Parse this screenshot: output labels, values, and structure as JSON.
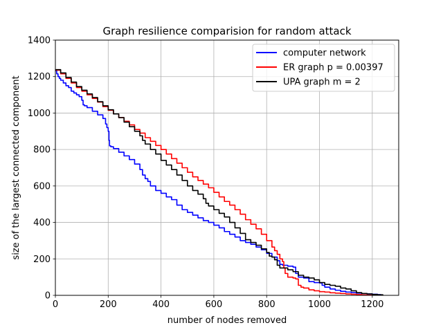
{
  "chart_data": {
    "type": "line",
    "title": "Graph resilience comparision for random attack",
    "xlabel": "number of nodes removed",
    "ylabel": "size of the largest connected component",
    "xlim": [
      0,
      1300
    ],
    "ylim": [
      0,
      1400
    ],
    "xticks": [
      0,
      200,
      400,
      600,
      800,
      1000,
      1200
    ],
    "yticks": [
      0,
      200,
      400,
      600,
      800,
      1000,
      1200,
      1400
    ],
    "grid": true,
    "legend_position": "top-right",
    "series": [
      {
        "name": "computer network",
        "color": "#0000ff",
        "x": [
          0,
          5,
          10,
          15,
          20,
          30,
          40,
          50,
          60,
          70,
          80,
          90,
          100,
          105,
          110,
          120,
          140,
          160,
          180,
          190,
          195,
          200,
          203,
          205,
          210,
          220,
          240,
          260,
          280,
          300,
          320,
          330,
          340,
          350,
          360,
          380,
          400,
          420,
          440,
          460,
          480,
          500,
          520,
          540,
          560,
          580,
          600,
          620,
          640,
          660,
          680,
          700,
          720,
          740,
          760,
          780,
          800,
          820,
          840,
          850,
          860,
          880,
          900,
          910,
          920,
          940,
          960,
          980,
          1000,
          1010,
          1020,
          1040,
          1060,
          1080,
          1100,
          1120,
          1140,
          1160,
          1180,
          1200,
          1220,
          1232
        ],
        "y": [
          1232,
          1215,
          1200,
          1190,
          1180,
          1165,
          1150,
          1140,
          1120,
          1110,
          1100,
          1090,
          1070,
          1045,
          1040,
          1030,
          1010,
          990,
          970,
          940,
          920,
          900,
          850,
          820,
          815,
          805,
          785,
          765,
          745,
          720,
          690,
          660,
          640,
          625,
          600,
          575,
          560,
          540,
          525,
          495,
          470,
          455,
          440,
          425,
          410,
          400,
          385,
          370,
          350,
          335,
          320,
          300,
          290,
          280,
          265,
          250,
          230,
          210,
          190,
          170,
          165,
          160,
          155,
          120,
          100,
          95,
          75,
          70,
          68,
          55,
          45,
          35,
          28,
          22,
          18,
          15,
          12,
          10,
          8,
          6,
          4,
          2
        ]
      },
      {
        "name": "ER graph p = 0.00397",
        "color": "#ff0000",
        "x": [
          0,
          20,
          40,
          60,
          80,
          100,
          120,
          140,
          160,
          180,
          200,
          220,
          240,
          260,
          280,
          300,
          320,
          340,
          360,
          380,
          400,
          420,
          440,
          460,
          480,
          500,
          520,
          540,
          560,
          580,
          600,
          620,
          640,
          660,
          680,
          700,
          720,
          740,
          760,
          780,
          800,
          820,
          830,
          840,
          850,
          860,
          865,
          870,
          880,
          900,
          910,
          920,
          930,
          940,
          960,
          980,
          1000,
          1020,
          1040,
          1060,
          1080,
          1100,
          1120,
          1140,
          1160,
          1180,
          1200
        ],
        "y": [
          1235,
          1215,
          1190,
          1165,
          1140,
          1120,
          1100,
          1080,
          1060,
          1035,
          1015,
          995,
          975,
          955,
          935,
          910,
          890,
          865,
          845,
          822,
          800,
          775,
          750,
          725,
          700,
          675,
          650,
          630,
          610,
          590,
          565,
          540,
          515,
          495,
          470,
          445,
          415,
          390,
          365,
          335,
          300,
          265,
          245,
          225,
          200,
          185,
          150,
          120,
          100,
          95,
          90,
          55,
          45,
          40,
          30,
          25,
          20,
          18,
          14,
          12,
          10,
          8,
          6,
          4,
          2,
          1,
          0
        ]
      },
      {
        "name": "UPA graph m = 2",
        "color": "#000000",
        "x": [
          0,
          20,
          40,
          60,
          80,
          100,
          120,
          140,
          160,
          180,
          200,
          220,
          240,
          260,
          280,
          300,
          320,
          330,
          340,
          360,
          380,
          400,
          420,
          440,
          460,
          480,
          500,
          520,
          540,
          560,
          570,
          580,
          600,
          620,
          640,
          660,
          680,
          700,
          720,
          740,
          760,
          780,
          800,
          810,
          820,
          830,
          840,
          850,
          860,
          880,
          900,
          920,
          940,
          960,
          980,
          1000,
          1020,
          1040,
          1060,
          1080,
          1100,
          1120,
          1140,
          1160,
          1180,
          1200,
          1220,
          1240
        ],
        "y": [
          1238,
          1220,
          1195,
          1170,
          1145,
          1125,
          1105,
          1085,
          1062,
          1040,
          1018,
          995,
          975,
          950,
          925,
          900,
          875,
          850,
          830,
          800,
          775,
          740,
          715,
          690,
          660,
          630,
          600,
          575,
          555,
          530,
          505,
          490,
          470,
          450,
          430,
          400,
          370,
          340,
          305,
          290,
          275,
          255,
          235,
          215,
          210,
          195,
          165,
          150,
          150,
          140,
          130,
          110,
          100,
          95,
          85,
          70,
          60,
          55,
          50,
          40,
          35,
          25,
          15,
          10,
          8,
          5,
          3,
          1
        ]
      }
    ]
  }
}
